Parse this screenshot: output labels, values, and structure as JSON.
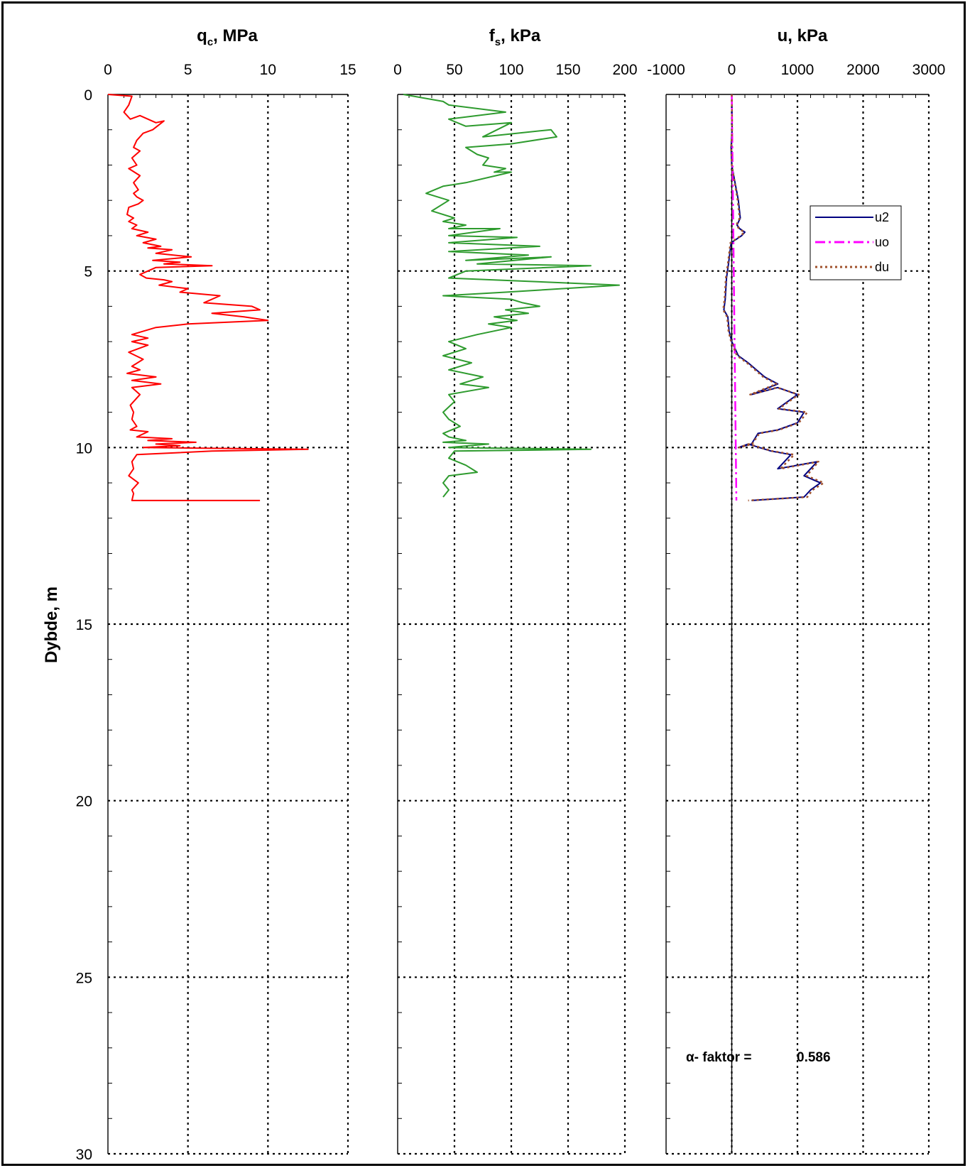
{
  "chart_data": [
    {
      "type": "line",
      "title_main": "q",
      "title_sub": "c",
      "title_rest": ", MPa",
      "ylabel": "Dybde, m",
      "xlim": [
        0,
        15
      ],
      "ylim": [
        0,
        30
      ],
      "x_ticks": [
        "0",
        "5",
        "10",
        "15"
      ],
      "y_ticks": [
        "0",
        "5",
        "10",
        "15",
        "20",
        "25",
        "30"
      ],
      "grid": true,
      "series": [
        {
          "color": "#ff0000",
          "x": [
            0,
            1.5,
            1.3,
            1.0,
            1.4,
            2.0,
            3.0,
            3.5,
            2.8,
            2.2,
            1.8,
            1.6,
            2.0,
            1.5,
            1.8,
            1.3,
            2.0,
            1.6,
            1.9,
            1.6,
            1.8,
            2.2,
            1.9,
            1.3,
            1.2,
            1.6,
            1.3,
            1.8,
            1.5,
            2.5,
            1.8,
            3.0,
            2.2,
            3.3,
            2.5,
            4.0,
            3.0,
            5.2,
            2.8,
            4.5,
            3.5,
            6.5,
            3.0,
            2.5,
            2.0,
            2.4,
            3.5,
            4.0,
            3.2,
            5.0,
            4.5,
            7.0,
            6.0,
            9.0,
            9.5,
            6.5,
            8.5,
            10.0,
            5.0,
            3.0,
            1.5,
            2.5,
            1.5,
            2.5,
            1.3,
            2.2,
            1.5,
            2.0,
            1.2,
            3.0,
            1.5,
            3.3,
            1.5,
            2.0,
            1.4,
            1.6,
            1.5,
            1.8,
            1.4,
            2.5,
            1.8,
            4.0,
            2.5,
            5.5,
            3.0,
            4.5,
            2.2,
            12.5,
            6.5,
            1.8,
            1.5,
            1.6,
            1.3,
            1.9,
            1.5,
            1.6,
            1.5,
            9.5
          ],
          "y": [
            0,
            0.05,
            0.3,
            0.5,
            0.7,
            0.6,
            0.8,
            0.75,
            1.0,
            1.1,
            1.3,
            1.5,
            1.6,
            1.8,
            2.0,
            2.1,
            2.3,
            2.5,
            2.7,
            2.8,
            2.9,
            3.0,
            3.1,
            3.2,
            3.4,
            3.5,
            3.6,
            3.7,
            3.8,
            3.9,
            4.0,
            4.1,
            4.2,
            4.3,
            4.35,
            4.4,
            4.5,
            4.6,
            4.7,
            4.75,
            4.8,
            4.85,
            4.9,
            5.0,
            5.1,
            5.2,
            5.25,
            5.3,
            5.4,
            5.5,
            5.6,
            5.7,
            5.9,
            6.0,
            6.1,
            6.2,
            6.3,
            6.4,
            6.5,
            6.6,
            6.8,
            6.9,
            7.0,
            7.1,
            7.3,
            7.5,
            7.7,
            7.8,
            7.9,
            8.0,
            8.1,
            8.2,
            8.3,
            8.5,
            8.8,
            9.0,
            9.2,
            9.4,
            9.5,
            9.55,
            9.7,
            9.75,
            9.8,
            9.85,
            9.9,
            9.95,
            10.0,
            10.05,
            10.1,
            10.2,
            10.4,
            10.6,
            10.8,
            11.0,
            11.2,
            11.3,
            11.5,
            11.5
          ]
        }
      ]
    },
    {
      "type": "line",
      "title_main": "f",
      "title_sub": "s",
      "title_rest": ", kPa",
      "xlim": [
        0,
        200
      ],
      "ylim": [
        0,
        30
      ],
      "x_ticks": [
        "0",
        "50",
        "100",
        "150",
        "200"
      ],
      "grid": true,
      "series": [
        {
          "color": "#2e9b2e",
          "x": [
            5,
            40,
            45,
            95,
            45,
            60,
            100,
            75,
            135,
            140,
            100,
            60,
            70,
            80,
            75,
            95,
            85,
            100,
            60,
            40,
            25,
            45,
            30,
            50,
            40,
            60,
            45,
            90,
            45,
            105,
            45,
            125,
            45,
            115,
            60,
            135,
            70,
            170,
            60,
            45,
            195,
            95,
            40,
            100,
            110,
            125,
            95,
            115,
            85,
            105,
            80,
            100,
            70,
            45,
            60,
            40,
            65,
            45,
            75,
            55,
            80,
            45,
            50,
            40,
            45,
            55,
            40,
            45,
            60,
            40,
            80,
            45,
            170,
            50,
            45,
            60,
            70,
            45,
            40,
            45,
            40
          ],
          "y": [
            0,
            0.2,
            0.3,
            0.5,
            0.7,
            0.9,
            0.8,
            1.2,
            1.0,
            1.2,
            1.4,
            1.5,
            1.7,
            1.8,
            2.0,
            2.1,
            2.2,
            2.2,
            2.5,
            2.6,
            2.8,
            3.0,
            3.3,
            3.5,
            3.6,
            3.7,
            3.8,
            3.8,
            4.0,
            4.05,
            4.2,
            4.3,
            4.45,
            4.55,
            4.7,
            4.6,
            4.8,
            4.85,
            5.0,
            5.2,
            5.4,
            5.6,
            5.7,
            5.8,
            5.9,
            6.0,
            6.1,
            6.2,
            6.3,
            6.4,
            6.5,
            6.6,
            6.8,
            7.0,
            7.2,
            7.4,
            7.6,
            7.8,
            8.0,
            8.2,
            8.3,
            8.5,
            8.7,
            9.0,
            9.2,
            9.4,
            9.6,
            9.7,
            9.8,
            9.85,
            9.9,
            10.0,
            10.05,
            10.1,
            10.3,
            10.5,
            10.7,
            10.8,
            11.0,
            11.2,
            11.4
          ]
        }
      ]
    },
    {
      "type": "line",
      "title_main": "u, kPa",
      "title_sub": "",
      "title_rest": "",
      "xlim": [
        -1000,
        3000
      ],
      "ylim": [
        0,
        30
      ],
      "x_ticks": [
        "-1000",
        "0",
        "1000",
        "2000",
        "3000"
      ],
      "grid": true,
      "legend": "top-right",
      "annotation_label": "α- faktor =",
      "annotation_value": "0.586",
      "series": [
        {
          "name": "u2",
          "color": "#000080",
          "style": "solid",
          "x": [
            0,
            5,
            -10,
            0,
            50,
            100,
            130,
            80,
            120,
            200,
            150,
            -10,
            -50,
            -80,
            -100,
            -120,
            -60,
            -40,
            0,
            100,
            250,
            500,
            700,
            300,
            700,
            1000,
            700,
            1100,
            1000,
            700,
            400,
            300,
            100,
            250,
            600,
            900,
            700,
            1300,
            1100,
            1350,
            1200,
            1100,
            300
          ],
          "y": [
            0,
            1.0,
            1.5,
            2.0,
            2.5,
            3.0,
            3.5,
            3.7,
            3.8,
            3.9,
            4.0,
            4.2,
            4.8,
            5.2,
            5.8,
            6.1,
            6.3,
            6.7,
            7.0,
            7.4,
            7.6,
            8.0,
            8.2,
            8.5,
            8.3,
            8.5,
            8.9,
            9.0,
            9.3,
            9.5,
            9.6,
            9.9,
            10.0,
            9.9,
            10.1,
            10.2,
            10.6,
            10.4,
            10.8,
            11.0,
            11.2,
            11.4,
            11.5
          ]
        },
        {
          "name": "uo",
          "color": "#ff00ff",
          "style": "dashdot",
          "x": [
            0,
            70
          ],
          "y": [
            0,
            11.5
          ]
        },
        {
          "name": "du",
          "color": "#a0522d",
          "style": "dotted",
          "x": [
            0,
            5,
            -10,
            0,
            45,
            90,
            120,
            70,
            110,
            190,
            140,
            -20,
            -60,
            -90,
            -110,
            -130,
            -70,
            -50,
            -10,
            80,
            230,
            480,
            680,
            280,
            690,
            1020,
            720,
            1150,
            1020,
            720,
            420,
            310,
            110,
            260,
            620,
            950,
            740,
            1320,
            1140,
            1400,
            1230,
            1150,
            250
          ],
          "y": [
            0,
            1.0,
            1.5,
            2.0,
            2.5,
            3.0,
            3.5,
            3.7,
            3.8,
            3.9,
            4.0,
            4.2,
            4.8,
            5.2,
            5.8,
            6.1,
            6.3,
            6.7,
            7.0,
            7.4,
            7.6,
            8.0,
            8.2,
            8.5,
            8.3,
            8.5,
            8.9,
            9.0,
            9.3,
            9.5,
            9.6,
            9.9,
            10.0,
            9.9,
            10.1,
            10.2,
            10.6,
            10.4,
            10.8,
            11.0,
            11.2,
            11.4,
            11.5
          ]
        }
      ]
    }
  ]
}
